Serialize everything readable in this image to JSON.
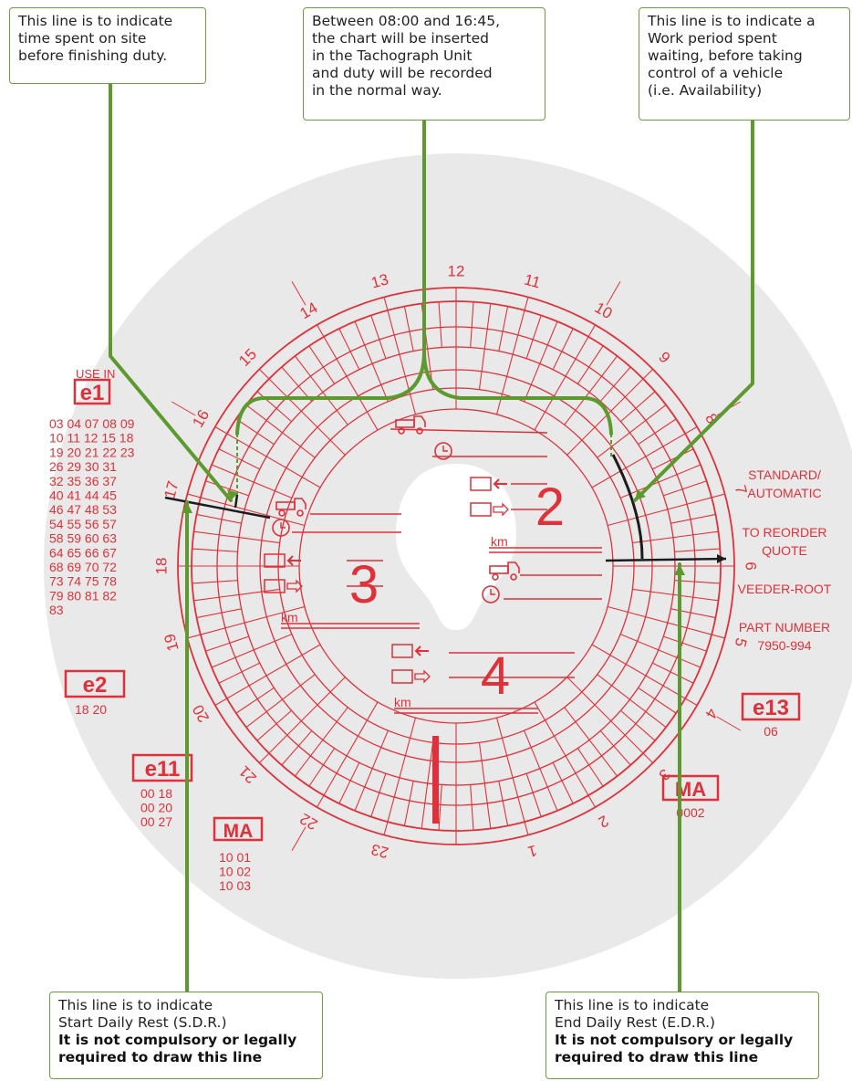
{
  "callouts": {
    "finish": {
      "lines": [
        "This line is to indicate",
        "time spent on site",
        "before finishing duty."
      ]
    },
    "insert": {
      "lines": [
        "Between 08:00 and 16:45,",
        "the chart will be inserted",
        "in the Tachograph Unit",
        "and duty will be recorded",
        "in the normal way."
      ]
    },
    "availability": {
      "lines": [
        "This line is to indicate a",
        "Work period spent",
        "waiting, before taking",
        "control of a vehicle",
        "(i.e. Availability)"
      ]
    },
    "sdr": {
      "lines": [
        "This line is to indicate",
        "Start Daily Rest (S.D.R.)"
      ],
      "bold": [
        "It is not compulsory or legally",
        "required to draw this line"
      ]
    },
    "edr": {
      "lines": [
        "This line is to indicate",
        "End Daily Rest (E.D.R.)"
      ],
      "bold": [
        "It is not compulsory or legally",
        "required to draw this line"
      ]
    }
  },
  "chart": {
    "hour_labels": [
      "1",
      "2",
      "3",
      "4",
      "5",
      "6",
      "7",
      "8",
      "9",
      "10",
      "11",
      "12",
      "13",
      "14",
      "15",
      "16",
      "17",
      "18",
      "19",
      "20",
      "21",
      "22",
      "23"
    ],
    "crew_numbers": [
      "2",
      "3",
      "4"
    ],
    "km_label": "km",
    "left_panel": {
      "use_in": "USE IN",
      "e1": "e1",
      "e1_codes": [
        "03 04 07 08 09",
        "10 11 12 15 18",
        "19 20 21 22 23",
        "26 29 30 31",
        "32 35 36 37",
        "40 41 44 45",
        "46 47 48 53",
        "54 55 56 57",
        "58 59 60 63",
        "64 65 66 67",
        "68 69 70 72",
        "73 74 75 78",
        "79 80 81 82",
        "83"
      ],
      "e2": "e2",
      "e2_codes": "18 20",
      "e11": "e11",
      "e11_codes": [
        "00 18",
        "00 20",
        "00 27"
      ],
      "ma": "MA",
      "ma_codes": [
        "10 01",
        "10 02",
        "10 03"
      ]
    },
    "right_panel": {
      "standard": [
        "STANDARD/",
        "AUTOMATIC"
      ],
      "reorder": [
        "TO REORDER",
        "QUOTE"
      ],
      "brand": "VEEDER-ROOT",
      "part": [
        "PART NUMBER",
        "7950-994"
      ],
      "e13": "e13",
      "e13_code": "06",
      "ma": "MA",
      "ma_code": "0002"
    },
    "colors": {
      "red": "#e0313a",
      "disc": "#e8e8e8",
      "green": "#5c9a2e",
      "ink": "#1c1c1c"
    }
  }
}
